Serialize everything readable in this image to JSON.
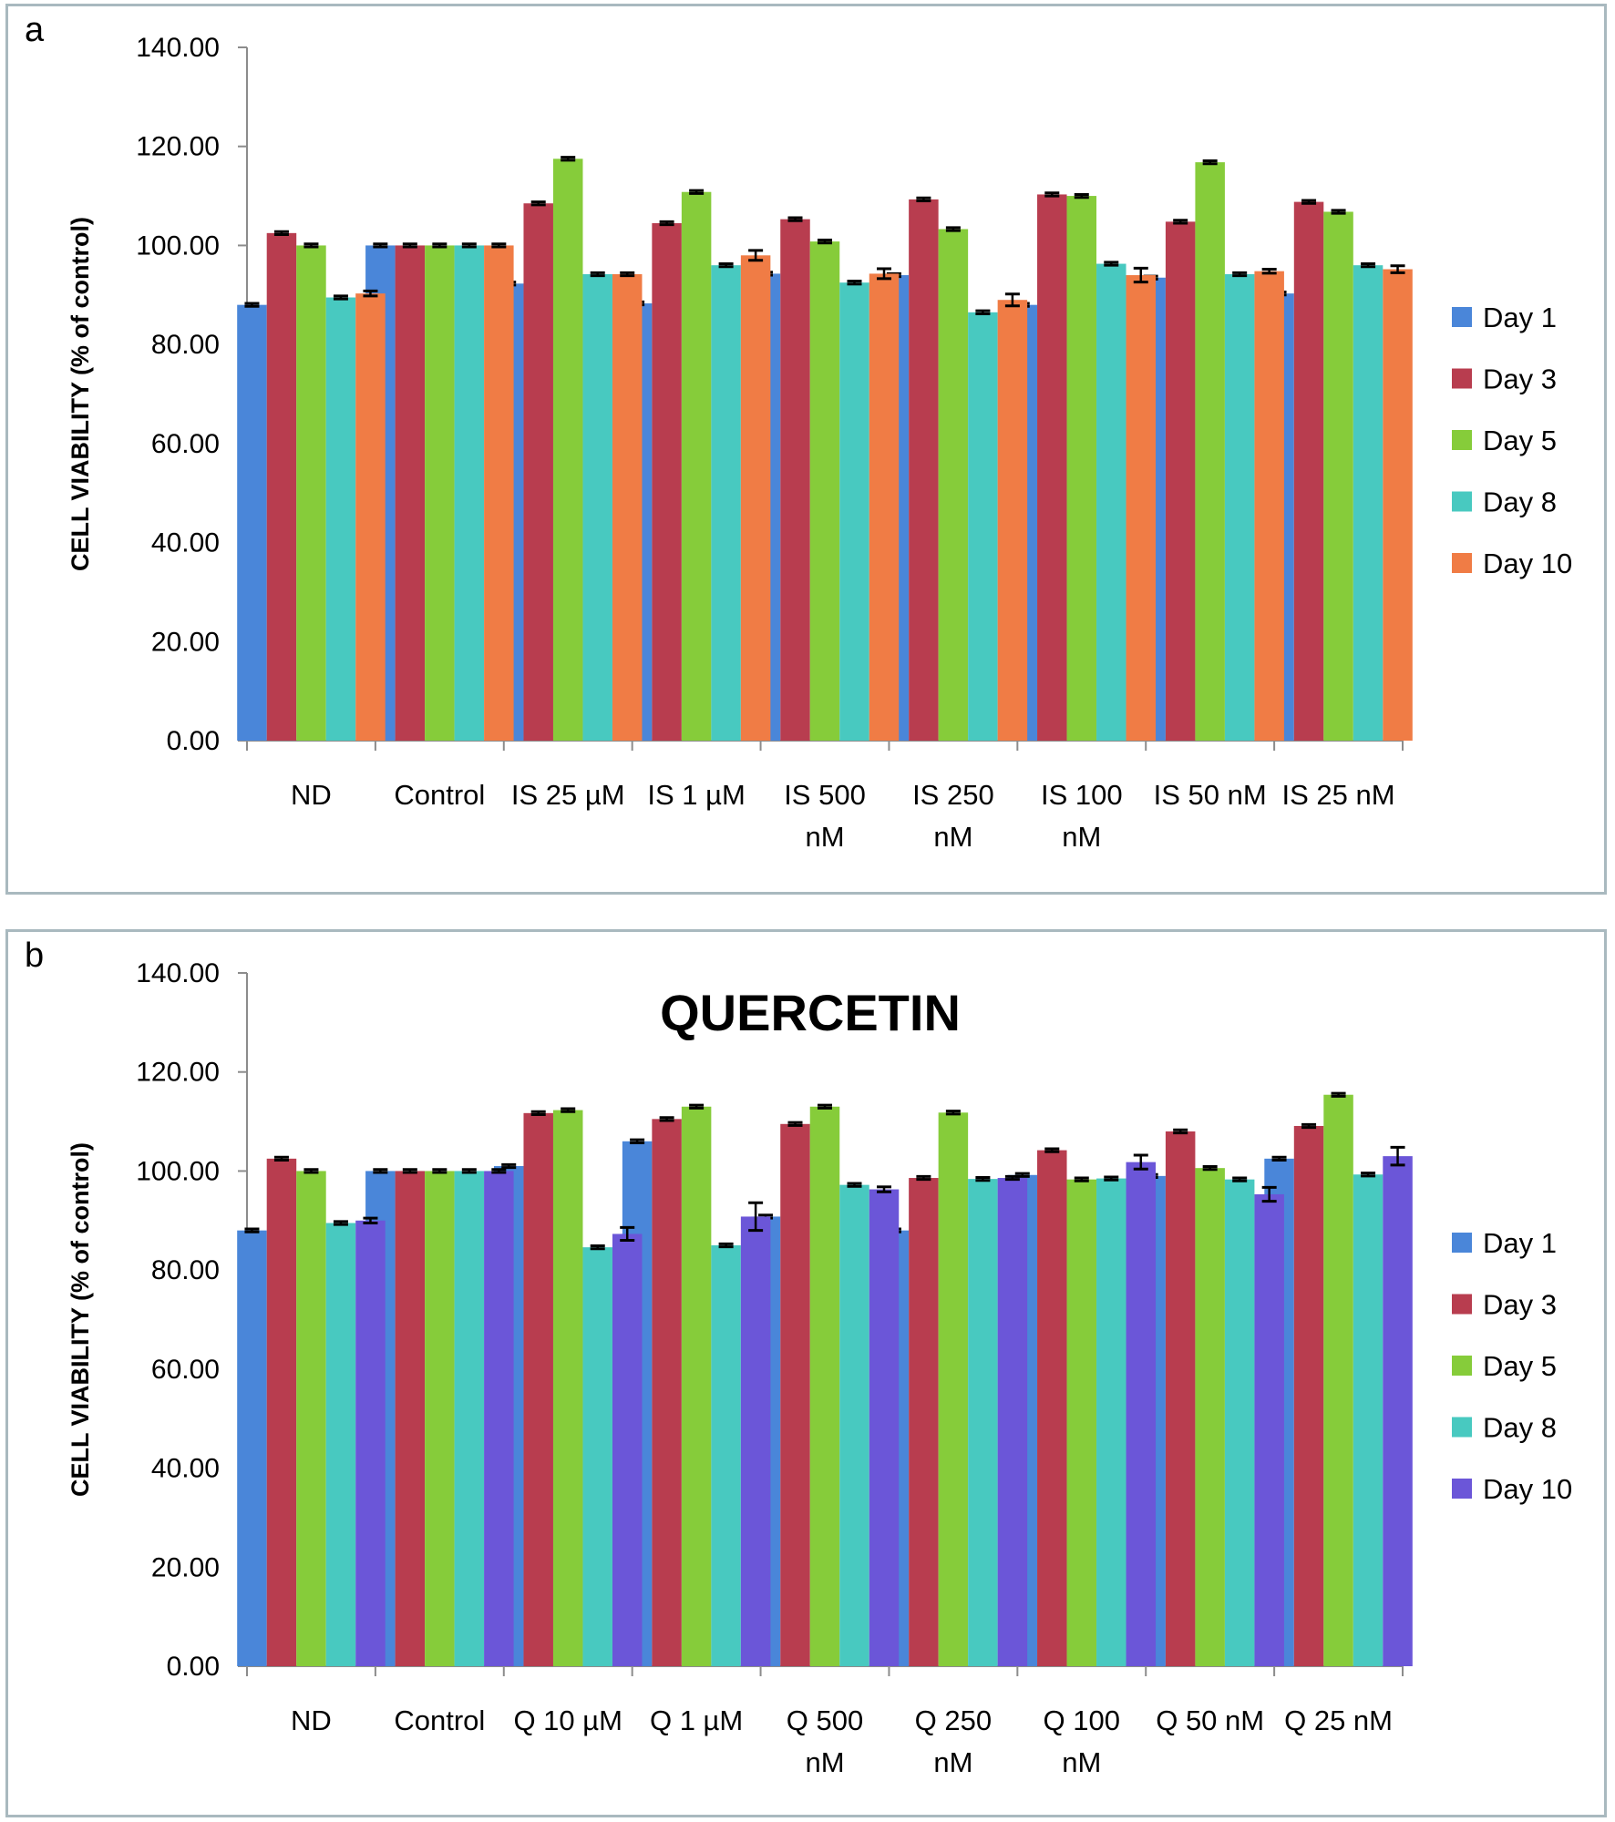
{
  "chart_data": [
    {
      "panel": "a",
      "type": "bar",
      "title": "",
      "xlabel": "",
      "ylabel": "CELL VIABILITY (% of control)",
      "ylim": [
        0,
        140
      ],
      "yticks": [
        "0.00",
        "20.00",
        "40.00",
        "60.00",
        "80.00",
        "100.00",
        "120.00",
        "140.00"
      ],
      "grid": false,
      "legend_position": "right",
      "categories": [
        [
          "ND"
        ],
        [
          "Control"
        ],
        [
          "IS 25 µM"
        ],
        [
          "IS 1 µM"
        ],
        [
          "IS 500",
          "nM"
        ],
        [
          "IS 250",
          "nM"
        ],
        [
          "IS 100",
          "nM"
        ],
        [
          "IS 50 nM"
        ],
        [
          "IS 25 nM"
        ]
      ],
      "series": [
        {
          "name": "Day 1",
          "color": "#4a86d9",
          "values": [
            88,
            100,
            92.3,
            88.3,
            94.3,
            94,
            88,
            93.5,
            90.3
          ],
          "errors": [
            0.3,
            0.3,
            0.3,
            0.3,
            0.3,
            0.3,
            0.3,
            0.3,
            0.3
          ]
        },
        {
          "name": "Day 3",
          "color": "#b83d4f",
          "values": [
            102.5,
            100,
            108.5,
            104.5,
            105.3,
            109.3,
            110.3,
            104.8,
            108.8
          ],
          "errors": [
            0.3,
            0.3,
            0.3,
            0.3,
            0.3,
            0.3,
            0.3,
            0.3,
            0.3
          ]
        },
        {
          "name": "Day 5",
          "color": "#86cc3a",
          "values": [
            100,
            100,
            117.5,
            110.8,
            100.8,
            103.3,
            110,
            116.8,
            106.8
          ],
          "errors": [
            0.3,
            0.3,
            0.3,
            0.3,
            0.3,
            0.3,
            0.3,
            0.3,
            0.3
          ]
        },
        {
          "name": "Day 8",
          "color": "#48c9c0",
          "values": [
            89.5,
            100,
            94.2,
            96,
            92.5,
            86.5,
            96.3,
            94.2,
            96
          ],
          "errors": [
            0.3,
            0.3,
            0.3,
            0.3,
            0.3,
            0.3,
            0.3,
            0.3,
            0.3
          ]
        },
        {
          "name": "Day 10",
          "color": "#f07c45",
          "values": [
            90.3,
            100,
            94.2,
            98,
            94.3,
            89,
            94,
            94.8,
            95.2
          ],
          "errors": [
            0.5,
            0.3,
            0.3,
            1,
            1,
            1.2,
            1.4,
            0.4,
            0.7
          ]
        }
      ]
    },
    {
      "panel": "b",
      "type": "bar",
      "title": "QUERCETIN",
      "xlabel": "",
      "ylabel": "CELL VIABILITY (% of control)",
      "ylim": [
        0,
        140
      ],
      "yticks": [
        "0.00",
        "20.00",
        "40.00",
        "60.00",
        "80.00",
        "100.00",
        "120.00",
        "140.00"
      ],
      "grid": false,
      "legend_position": "right",
      "categories": [
        [
          "ND"
        ],
        [
          "Control"
        ],
        [
          "Q 10 µM"
        ],
        [
          "Q 1 µM"
        ],
        [
          "Q 500",
          "nM"
        ],
        [
          "Q 250",
          "nM"
        ],
        [
          "Q 100",
          "nM"
        ],
        [
          "Q 50 nM"
        ],
        [
          "Q 25 nM"
        ]
      ],
      "series": [
        {
          "name": "Day 1",
          "color": "#4a86d9",
          "values": [
            88,
            100,
            101,
            106,
            90.8,
            88,
            99.2,
            99,
            102.5
          ],
          "errors": [
            0.3,
            0.3,
            0.3,
            0.3,
            0.3,
            0.3,
            0.3,
            0.3,
            0.3
          ]
        },
        {
          "name": "Day 3",
          "color": "#b83d4f",
          "values": [
            102.5,
            100,
            111.7,
            110.5,
            109.5,
            98.6,
            104.2,
            108,
            109.1
          ],
          "errors": [
            0.3,
            0.3,
            0.3,
            0.3,
            0.3,
            0.3,
            0.3,
            0.3,
            0.3
          ]
        },
        {
          "name": "Day 5",
          "color": "#86cc3a",
          "values": [
            100,
            100,
            112.3,
            113,
            113,
            111.8,
            98.3,
            100.6,
            115.4
          ],
          "errors": [
            0.3,
            0.3,
            0.3,
            0.3,
            0.3,
            0.3,
            0.3,
            0.3,
            0.3
          ]
        },
        {
          "name": "Day 8",
          "color": "#48c9c0",
          "values": [
            89.5,
            100,
            84.6,
            85,
            97.2,
            98.4,
            98.5,
            98.3,
            99.3
          ],
          "errors": [
            0.3,
            0.3,
            0.3,
            0.3,
            0.3,
            0.3,
            0.3,
            0.3,
            0.3
          ]
        },
        {
          "name": "Day 10",
          "color": "#6b56d8",
          "values": [
            90,
            100,
            87.3,
            90.8,
            96.3,
            98.6,
            101.8,
            95.3,
            103
          ],
          "errors": [
            0.5,
            0.3,
            1.3,
            2.8,
            0.5,
            0.3,
            1.4,
            1.4,
            1.8
          ]
        }
      ]
    }
  ]
}
